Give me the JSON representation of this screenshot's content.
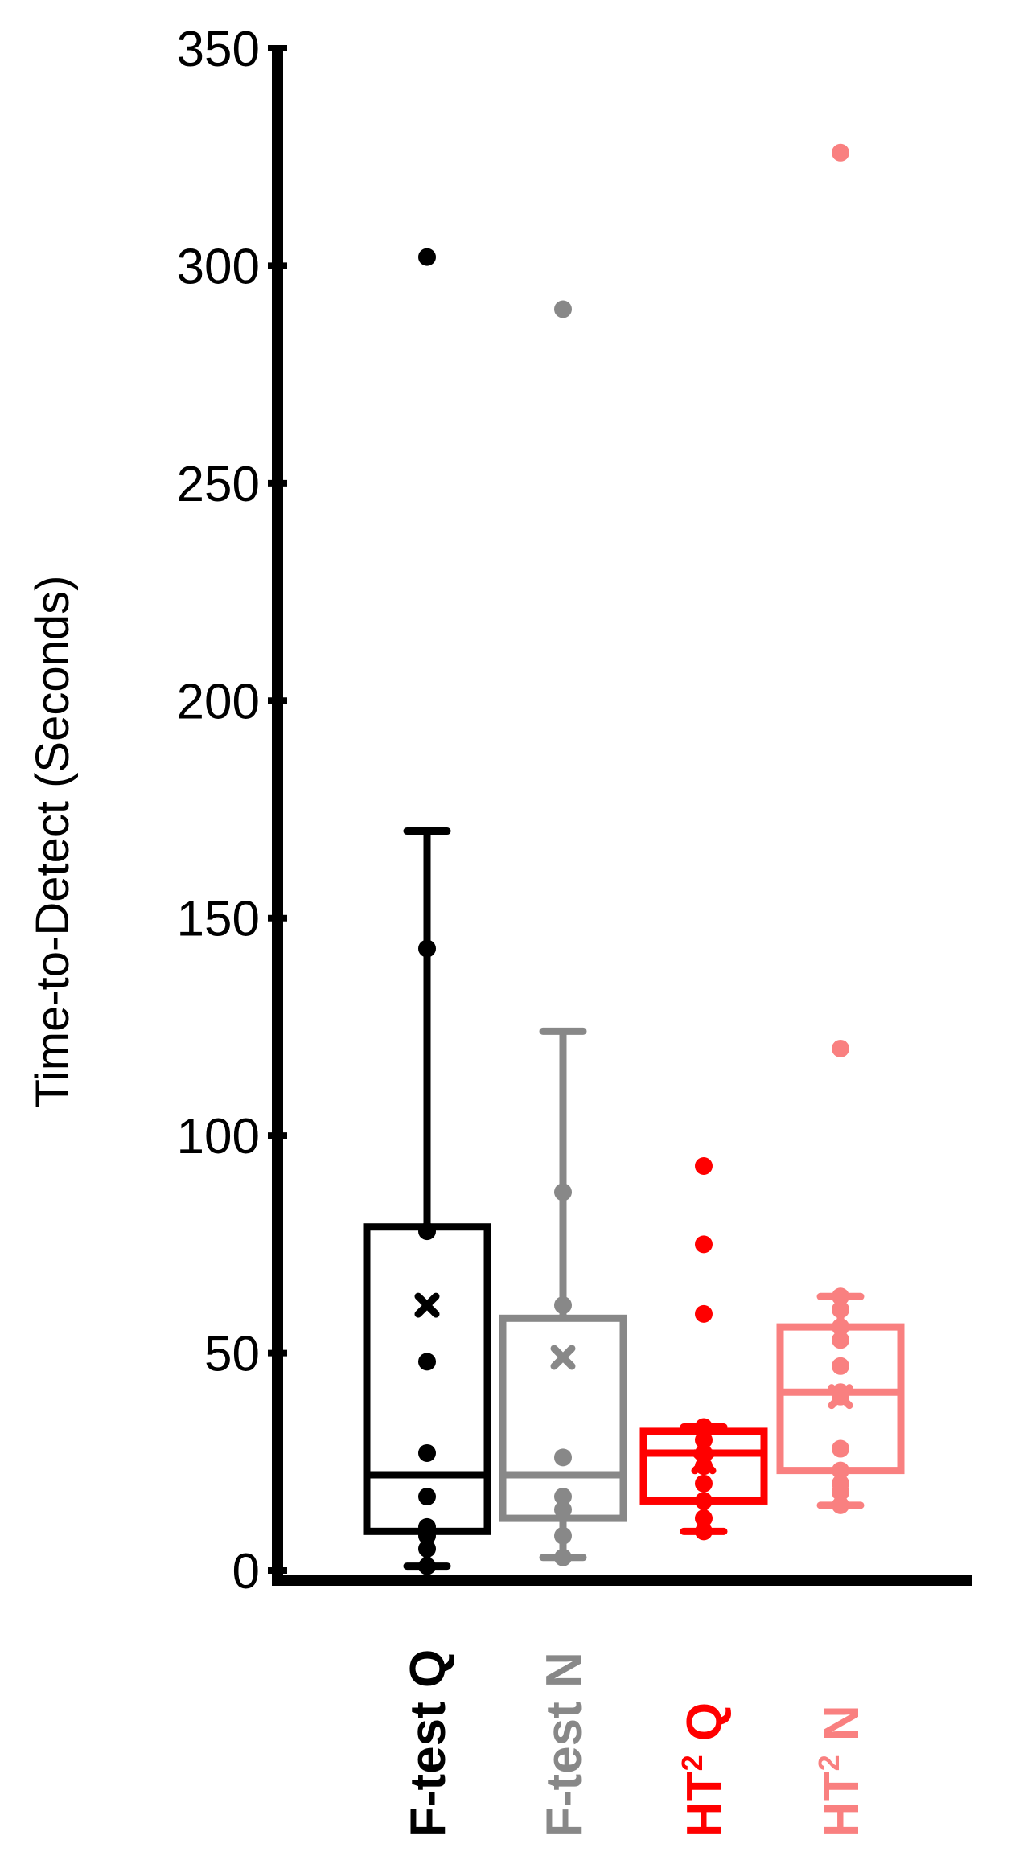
{
  "chart_data": {
    "type": "box",
    "ylabel": "Time-to-Detect (Seconds)",
    "xlabel": "",
    "ylim": [
      0,
      350
    ],
    "yticks": [
      0,
      50,
      100,
      150,
      200,
      250,
      300,
      350
    ],
    "grid": false,
    "legend": "none",
    "series": [
      {
        "category": "F-test Q",
        "label_main": "F-test Q",
        "label_sup": "",
        "label_tail": "",
        "color": "#000000",
        "whisker_low": 1,
        "q1": 9,
        "median": 22,
        "q3": 79,
        "whisker_high": 170,
        "mean": 61,
        "points": [
          1,
          5,
          8,
          10,
          17,
          27,
          48,
          78,
          143
        ],
        "outliers": [
          302
        ]
      },
      {
        "category": "F-test N",
        "label_main": "F-test N",
        "label_sup": "",
        "label_tail": "",
        "color": "#888888",
        "whisker_low": 3,
        "q1": 12,
        "median": 22,
        "q3": 58,
        "whisker_high": 124,
        "mean": 49,
        "points": [
          3,
          8,
          14,
          17,
          26,
          61,
          87
        ],
        "outliers": [
          290
        ]
      },
      {
        "category": "HT² Q",
        "label_main": "HT",
        "label_sup": "2",
        "label_tail": " Q",
        "color": "#ff0000",
        "whisker_low": 9,
        "q1": 16,
        "median": 27,
        "q3": 32,
        "whisker_high": 33,
        "mean": 25,
        "points": [
          9,
          12,
          16,
          20,
          24,
          27,
          30,
          33
        ],
        "outliers": [
          59,
          75,
          93
        ]
      },
      {
        "category": "HT² N",
        "label_main": "HT",
        "label_sup": "2",
        "label_tail": " N",
        "color": "#f98080",
        "whisker_low": 15,
        "q1": 23,
        "median": 41,
        "q3": 56,
        "whisker_high": 63,
        "mean": 40,
        "points": [
          15,
          18,
          20,
          23,
          28,
          40,
          41,
          47,
          53,
          56,
          60,
          63
        ],
        "outliers": [
          120,
          326
        ]
      }
    ]
  }
}
